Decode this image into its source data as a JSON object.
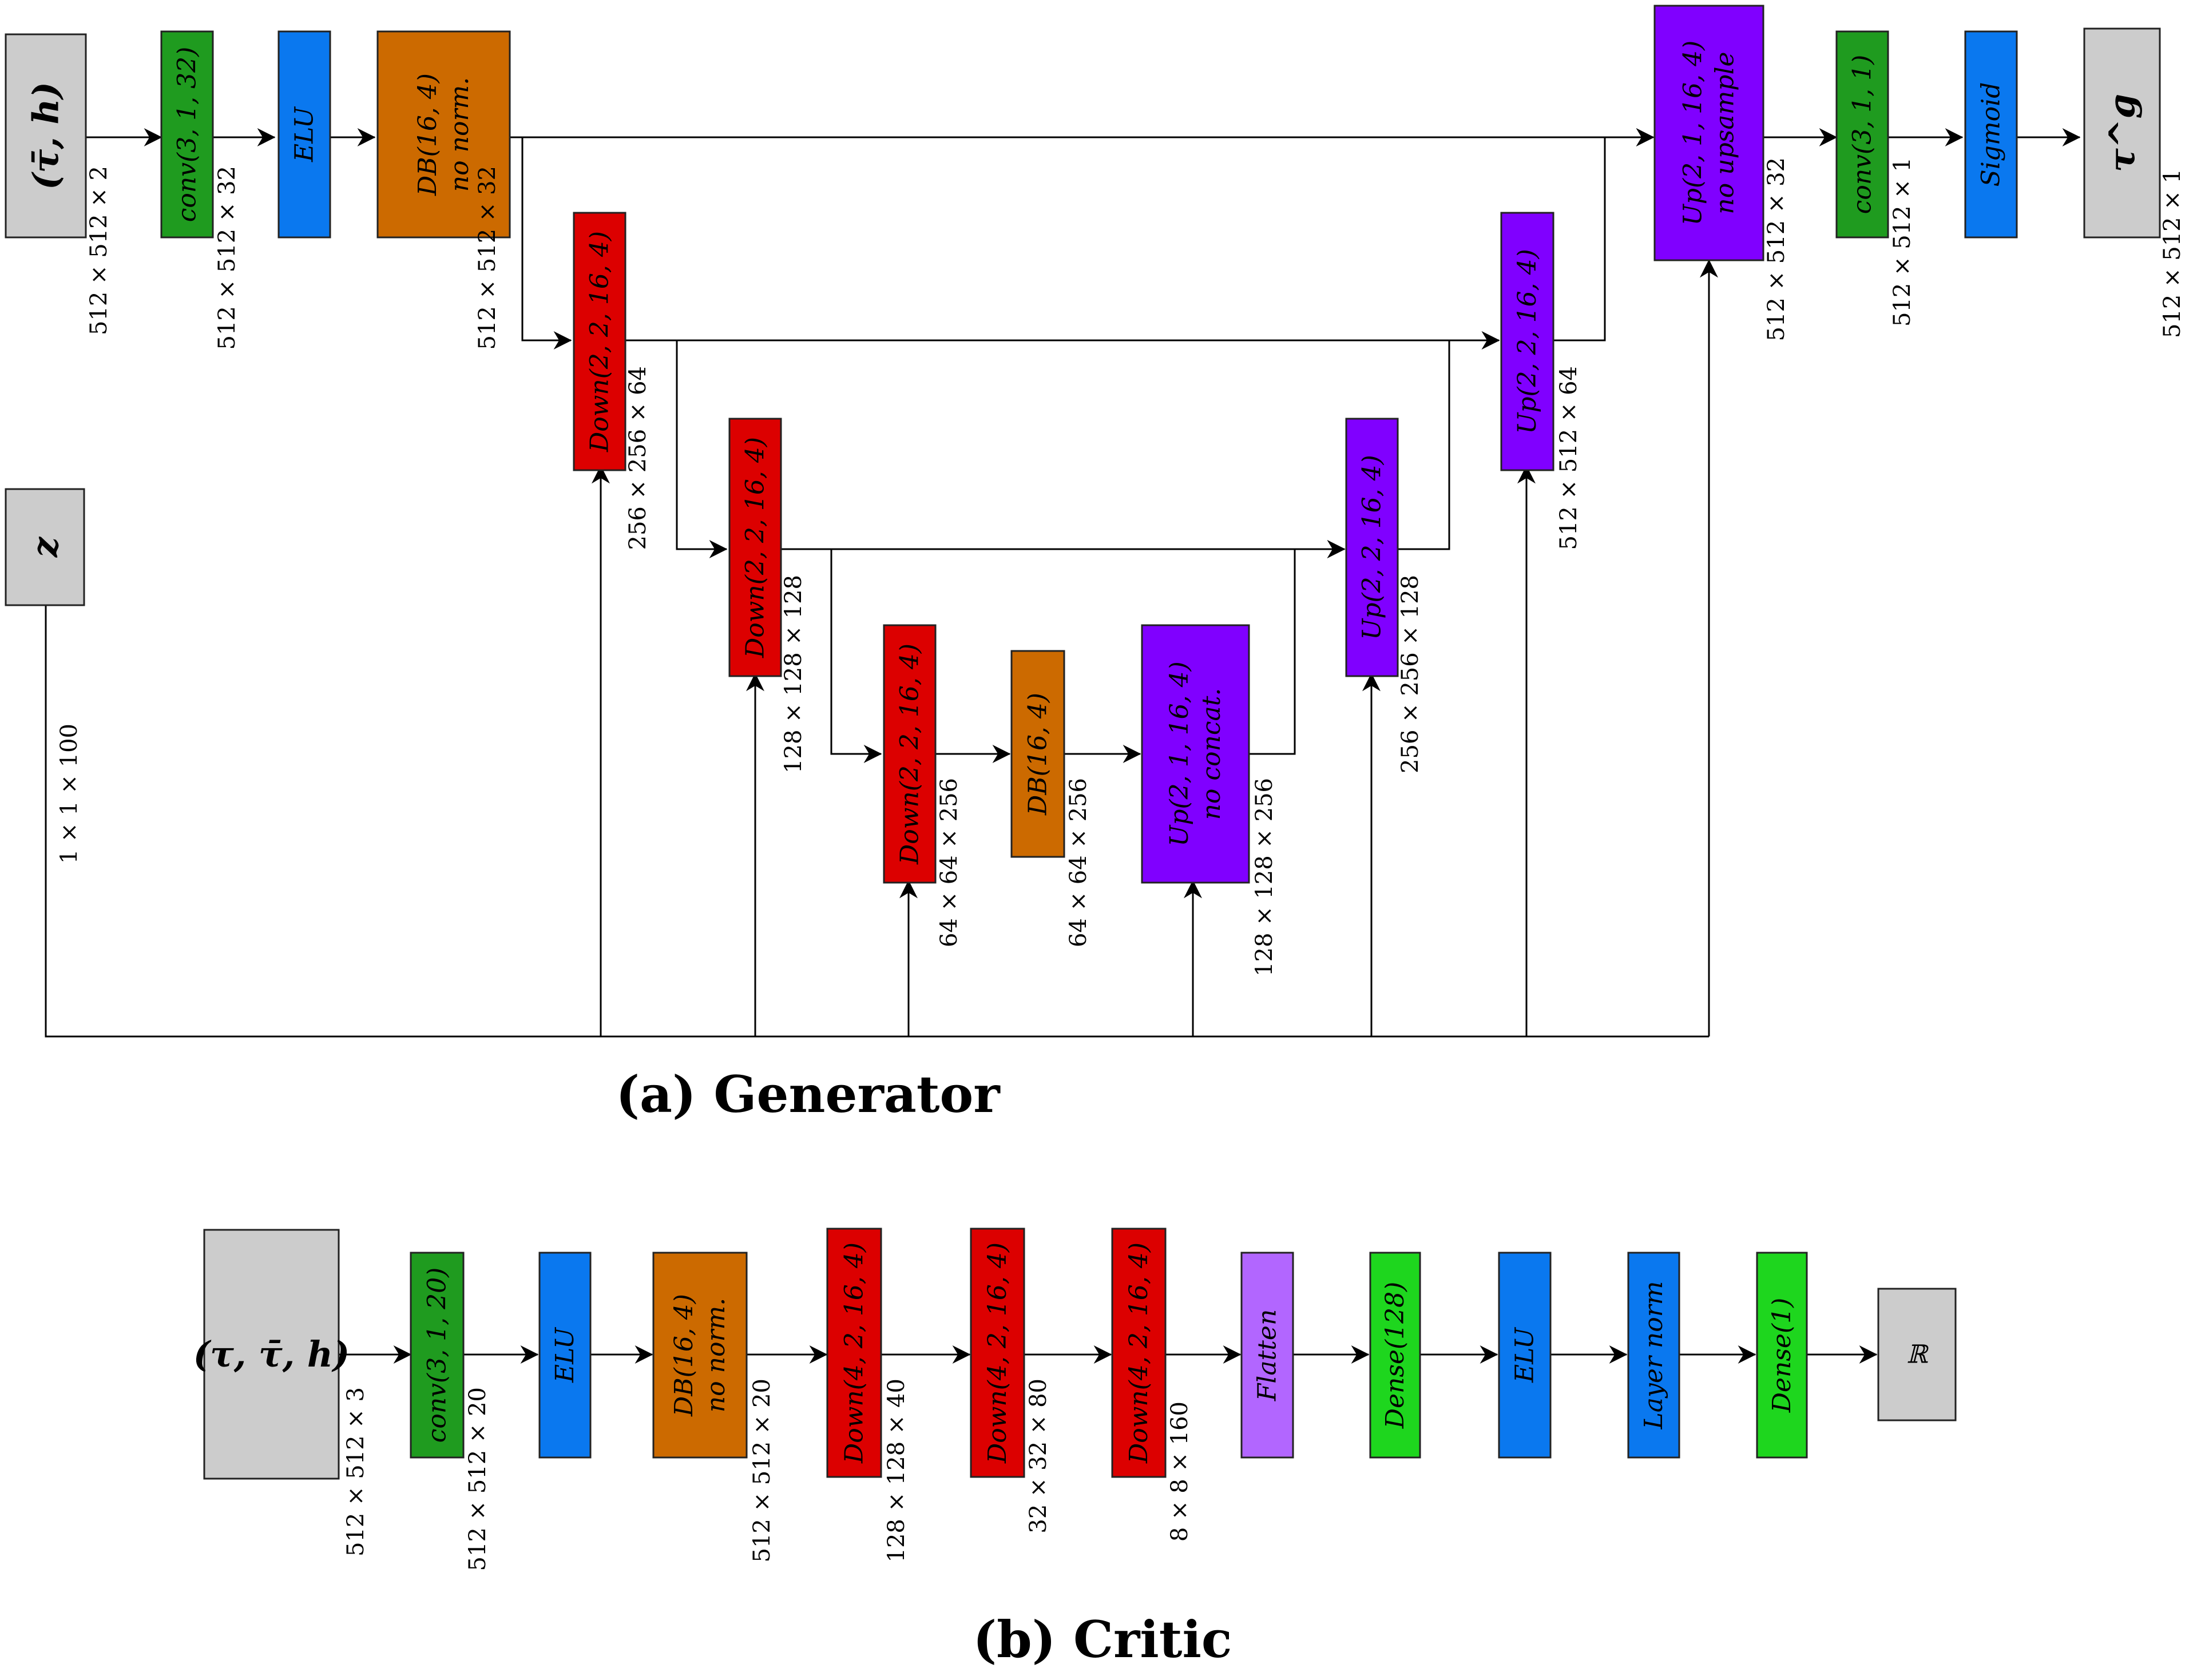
{
  "colors": {
    "gray": "#cccccc",
    "green": "#1f9b1f",
    "blue": "#0a78ef",
    "orange": "#cc6a00",
    "red": "#dc0000",
    "purple": "#8000ff",
    "lightpurple": "#b266ff",
    "brightgreen": "#1ed61e"
  },
  "generator": {
    "caption": "(a) Generator",
    "blocks": {
      "input": {
        "label": "(τ̄, h)",
        "color": "gray"
      },
      "conv1": {
        "label": "conv(3, 1, 32)",
        "color": "green"
      },
      "elu": {
        "label": "ELU",
        "color": "blue"
      },
      "db1": {
        "label": "DB(16, 4)",
        "label2": "no norm.",
        "color": "orange"
      },
      "down1": {
        "label": "Down(2, 2, 16, 4)",
        "color": "red"
      },
      "down2": {
        "label": "Down(2, 2, 16, 4)",
        "color": "red"
      },
      "down3": {
        "label": "Down(2, 2, 16, 4)",
        "color": "red"
      },
      "db2": {
        "label": "DB(16, 4)",
        "color": "orange"
      },
      "upmid": {
        "label": "Up(2, 1, 16, 4)",
        "label2": "no concat.",
        "color": "purple"
      },
      "up2": {
        "label": "Up(2, 2, 16, 4)",
        "color": "purple"
      },
      "up3": {
        "label": "Up(2, 2, 16, 4)",
        "color": "purple"
      },
      "upfinal": {
        "label": "Up(2, 1, 16, 4)",
        "label2": "no upsample",
        "color": "purple"
      },
      "conv2": {
        "label": "conv(3, 1, 1)",
        "color": "green"
      },
      "sigmoid": {
        "label": "Sigmoid",
        "color": "blue"
      },
      "output": {
        "label": "τ^g",
        "color": "gray"
      },
      "z": {
        "label": "z",
        "color": "gray"
      }
    },
    "dims": {
      "input": "512 × 512 × 2",
      "conv1": "512 × 512 × 32",
      "db1": "512 × 512 × 32",
      "down1": "256 × 256 × 64",
      "down2": "128 × 128 × 128",
      "down3": "64 × 64 × 256",
      "db2": "64 × 64 × 256",
      "upmid": "128 × 128 × 256",
      "up2": "256 × 256 × 128",
      "up3": "512 × 512 × 64",
      "upfinal": "512 × 512 × 32",
      "conv2": "512 × 512 × 1",
      "output": "512 × 512 × 1",
      "z": "1 × 1 × 100"
    }
  },
  "critic": {
    "caption": "(b) Critic",
    "blocks": {
      "input": {
        "label": "(τ, τ̄, h)",
        "color": "gray"
      },
      "conv": {
        "label": "conv(3, 1, 20)",
        "color": "green"
      },
      "elu1": {
        "label": "ELU",
        "color": "blue"
      },
      "db": {
        "label": "DB(16, 4)",
        "label2": "no norm.",
        "color": "orange"
      },
      "down1": {
        "label": "Down(4, 2, 16, 4)",
        "color": "red"
      },
      "down2": {
        "label": "Down(4, 2, 16, 4)",
        "color": "red"
      },
      "down3": {
        "label": "Down(4, 2, 16, 4)",
        "color": "red"
      },
      "flatten": {
        "label": "Flatten",
        "color": "lightpurple"
      },
      "dense128": {
        "label": "Dense(128)",
        "color": "brightgreen"
      },
      "elu2": {
        "label": "ELU",
        "color": "blue"
      },
      "layernorm": {
        "label": "Layer norm",
        "color": "blue"
      },
      "dense1": {
        "label": "Dense(1)",
        "color": "brightgreen"
      },
      "output": {
        "label": "ℝ",
        "color": "gray"
      }
    },
    "dims": {
      "input": "512 × 512 × 3",
      "conv": "512 × 512 × 20",
      "db": "512 × 512 × 20",
      "down1": "128 × 128 × 40",
      "down2": "32 × 32 × 80",
      "down3": "8 × 8 × 160"
    }
  }
}
